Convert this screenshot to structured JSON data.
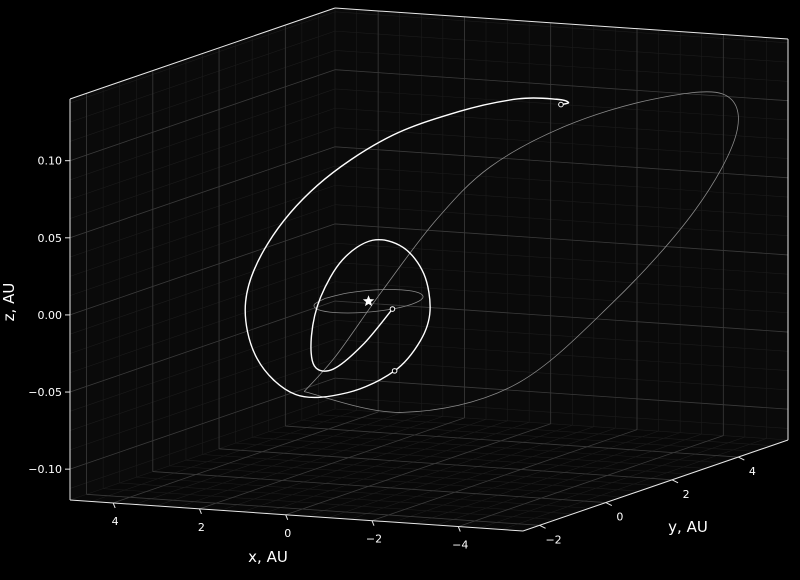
{
  "chart_data": {
    "type": "line",
    "projection": "3d",
    "title": "",
    "xlabel": "x, AU",
    "ylabel": "y, AU",
    "zlabel": "z, AU",
    "x_ticks": [
      "−4",
      "−2",
      "0",
      "2",
      "4"
    ],
    "y_ticks": [
      "−2",
      "0",
      "2",
      "4"
    ],
    "z_ticks": [
      "−0.10",
      "−0.05",
      "0.00",
      "0.05",
      "0.10"
    ],
    "xlim": [
      -5.5,
      5.0
    ],
    "ylim": [
      -2.5,
      5.5
    ],
    "zlim": [
      -0.12,
      0.14
    ],
    "grid": true,
    "background": "#000000",
    "series": [
      {
        "kind": "orbit-earth",
        "color": "#8a8a8a",
        "points": [
          [
            1.0,
            0.0,
            0.0
          ],
          [
            0.87,
            0.5,
            0.0
          ],
          [
            0.5,
            0.87,
            0.0
          ],
          [
            0.0,
            1.0,
            0.0
          ],
          [
            -0.5,
            0.87,
            0.0
          ],
          [
            -0.87,
            0.5,
            0.0
          ],
          [
            -1.0,
            0.0,
            0.0
          ],
          [
            -0.87,
            -0.5,
            0.0
          ],
          [
            -0.5,
            -0.87,
            0.0
          ],
          [
            0.0,
            -1.0,
            0.0
          ],
          [
            0.5,
            -0.87,
            0.0
          ],
          [
            0.87,
            -0.5,
            0.0
          ],
          [
            1.0,
            0.0,
            0.0
          ]
        ]
      },
      {
        "kind": "orbit-target",
        "color": "#8a8a8a",
        "points": [
          [
            1.8,
            0.4,
            -0.065
          ],
          [
            0.9,
            2.2,
            -0.09
          ],
          [
            -0.6,
            3.6,
            -0.08
          ],
          [
            -2.2,
            4.5,
            -0.03
          ],
          [
            -3.8,
            4.9,
            0.03
          ],
          [
            -5.0,
            4.6,
            0.085
          ],
          [
            -5.6,
            3.4,
            0.12
          ],
          [
            -5.4,
            1.5,
            0.13
          ],
          [
            -4.8,
            -0.3,
            0.125
          ],
          [
            -3.9,
            -1.4,
            0.105
          ],
          [
            -2.8,
            -1.6,
            0.07
          ],
          [
            -1.0,
            -0.9,
            0.015
          ],
          [
            0.6,
            -0.2,
            -0.035
          ],
          [
            1.8,
            0.4,
            -0.065
          ]
        ]
      },
      {
        "kind": "trajectory",
        "color": "#ffffff",
        "points": [
          [
            -0.9,
            -0.45,
            0.0
          ],
          [
            -0.6,
            -0.95,
            -0.02
          ],
          [
            -0.1,
            -1.2,
            -0.035
          ],
          [
            0.45,
            -1.05,
            -0.035
          ],
          [
            0.9,
            -0.55,
            -0.02
          ],
          [
            1.15,
            0.05,
            0.0
          ],
          [
            1.1,
            0.65,
            0.02
          ],
          [
            0.75,
            1.1,
            0.03
          ],
          [
            0.2,
            1.3,
            0.025
          ],
          [
            -0.4,
            1.15,
            0.01
          ],
          [
            -0.85,
            0.75,
            -0.01
          ],
          [
            -1.05,
            0.2,
            -0.025
          ],
          [
            -0.95,
            -0.45,
            -0.04
          ],
          [
            -0.4,
            -1.15,
            -0.05
          ],
          [
            0.5,
            -1.55,
            -0.05
          ],
          [
            1.55,
            -1.35,
            -0.03
          ],
          [
            2.35,
            -0.65,
            0.0
          ],
          [
            2.6,
            0.35,
            0.03
          ],
          [
            2.3,
            1.45,
            0.06
          ],
          [
            1.45,
            2.45,
            0.085
          ],
          [
            0.25,
            3.05,
            0.1
          ],
          [
            -1.05,
            3.15,
            0.11
          ],
          [
            -2.25,
            2.75,
            0.115
          ],
          [
            -3.1,
            2.0,
            0.12
          ],
          [
            -3.5,
            1.25,
            0.125
          ]
        ]
      }
    ],
    "markers": [
      {
        "kind": "sun",
        "symbol": "star",
        "point": [
          0,
          0,
          0
        ]
      },
      {
        "kind": "waypoint",
        "symbol": "circle",
        "point": [
          -0.9,
          -0.45,
          0.0
        ]
      },
      {
        "kind": "waypoint",
        "symbol": "circle",
        "point": [
          -0.95,
          -0.45,
          -0.04
        ]
      },
      {
        "kind": "waypoint",
        "symbol": "circle",
        "point": [
          -3.5,
          1.25,
          0.125
        ]
      }
    ]
  }
}
